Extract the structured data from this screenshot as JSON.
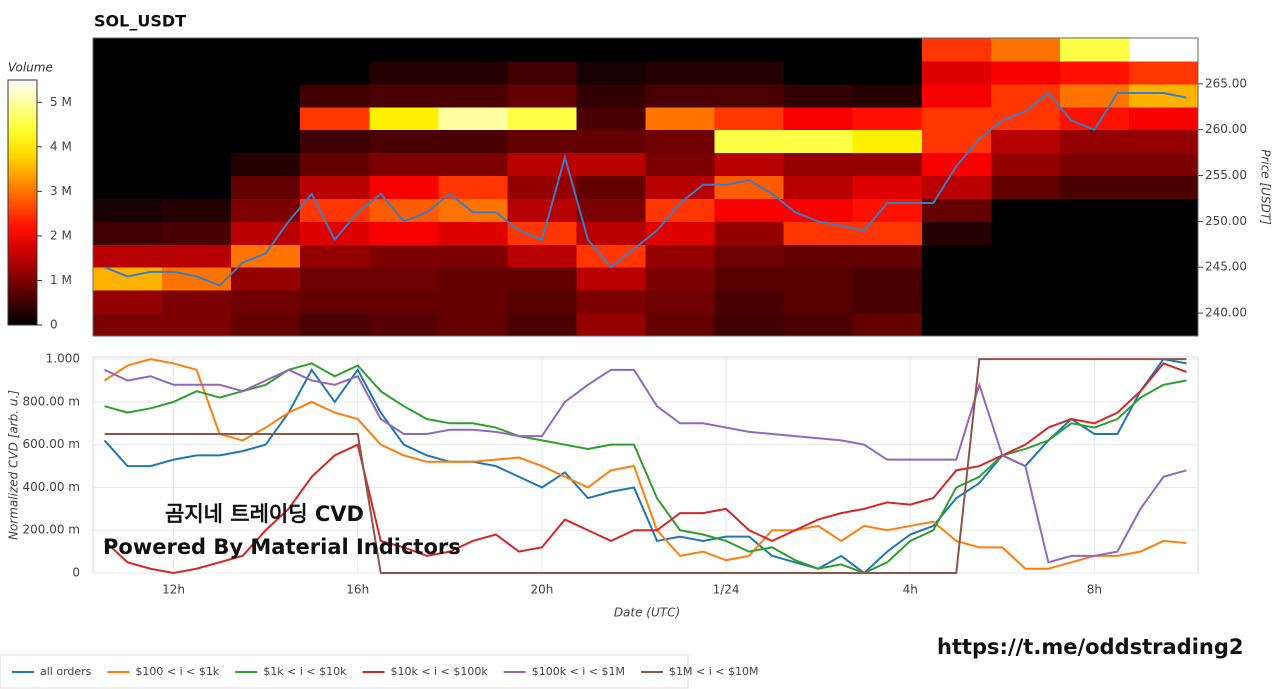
{
  "chart_data": [
    {
      "type": "heatmap",
      "title": "SOL_USDT",
      "y_label": "Price [USDT]",
      "xlim": [
        10.25,
        34.25
      ],
      "ylim": [
        237.5,
        270
      ],
      "yticks": [
        {
          "value": 240,
          "label": "240.00"
        },
        {
          "value": 245,
          "label": "245.00"
        },
        {
          "value": 250,
          "label": "250.00"
        },
        {
          "value": 255,
          "label": "255.00"
        },
        {
          "value": 260,
          "label": "260.00"
        },
        {
          "value": 265,
          "label": "265.00"
        }
      ],
      "x_bins": [
        10.25,
        11.75,
        13.25,
        14.75,
        16.25,
        17.75,
        19.25,
        20.75,
        22.25,
        23.75,
        25.25,
        26.75,
        28.25,
        29.75,
        31.25,
        32.75,
        34.25
      ],
      "y_bins": [
        237.5,
        240,
        242.5,
        245,
        247.5,
        250,
        252.5,
        255,
        257.5,
        260,
        262.5,
        265,
        267.5,
        270
      ],
      "z": [
        [
          1.0,
          1.0,
          0.8,
          0.6,
          0.7,
          0.8,
          0.6,
          1.2,
          0.8,
          0.5,
          0.6,
          0.8,
          0,
          0,
          0,
          0
        ],
        [
          1.2,
          1.0,
          0.9,
          0.8,
          0.8,
          0.8,
          0.7,
          1.0,
          0.9,
          0.6,
          0.7,
          0.6,
          0,
          0,
          0,
          0
        ],
        [
          3.5,
          3.0,
          1.2,
          0.9,
          0.9,
          0.8,
          0.8,
          1.5,
          1.0,
          0.7,
          0.7,
          0.6,
          0,
          0,
          0,
          0
        ],
        [
          1.5,
          1.5,
          3.0,
          1.2,
          1.0,
          1.0,
          1.5,
          2.5,
          1.2,
          0.9,
          0.8,
          0.8,
          0,
          0,
          0,
          0
        ],
        [
          0.5,
          0.6,
          1.5,
          1.8,
          2.0,
          1.8,
          2.5,
          1.5,
          1.8,
          1.2,
          2.5,
          2.5,
          0.3,
          0,
          0,
          0
        ],
        [
          0.2,
          0.3,
          1.0,
          2.5,
          2.8,
          3.0,
          1.5,
          1.0,
          2.5,
          2.0,
          2.0,
          2.2,
          0.8,
          0,
          0,
          0
        ],
        [
          0,
          0,
          0.8,
          1.5,
          2.0,
          2.5,
          1.2,
          0.8,
          1.5,
          2.8,
          1.5,
          1.8,
          1.5,
          0.8,
          0.6,
          0.6
        ],
        [
          0,
          0,
          0.3,
          0.8,
          1.0,
          1.0,
          1.5,
          1.5,
          1.0,
          1.5,
          1.2,
          1.2,
          2.0,
          1.2,
          1.0,
          1.0
        ],
        [
          0,
          0,
          0,
          0.5,
          0.6,
          0.6,
          0.8,
          0.8,
          0.9,
          4.5,
          4.5,
          4.0,
          2.5,
          1.5,
          1.2,
          1.2
        ],
        [
          0,
          0,
          0,
          2.5,
          4.0,
          5.0,
          4.5,
          0.6,
          3.0,
          2.5,
          2.0,
          2.2,
          2.5,
          2.5,
          2.2,
          2.0
        ],
        [
          0,
          0,
          0,
          0.5,
          0.6,
          0.6,
          0.8,
          0.4,
          0.6,
          0.6,
          0.4,
          0.3,
          2.0,
          2.5,
          3.0,
          3.5
        ],
        [
          0,
          0,
          0,
          0,
          0.3,
          0.3,
          0.5,
          0.2,
          0.3,
          0.3,
          0,
          0,
          1.8,
          2.0,
          2.2,
          2.5
        ],
        [
          0,
          0,
          0,
          0,
          0,
          0,
          0,
          0,
          0,
          0,
          0,
          0,
          2.5,
          3.0,
          4.5,
          5.5
        ]
      ],
      "colorbar": {
        "label": "Volume",
        "ylim": [
          0,
          5.5
        ],
        "yticks": [
          0,
          {
            "value": 1,
            "label": "1 M"
          },
          {
            "value": 2,
            "label": "2 M"
          },
          {
            "value": 3,
            "label": "3 M"
          },
          {
            "value": 4,
            "label": "4 M"
          },
          {
            "value": 5,
            "label": "5 M"
          }
        ]
      },
      "x": [
        10.5,
        11,
        11.5,
        12,
        12.5,
        13,
        13.5,
        14,
        14.5,
        15,
        15.5,
        16,
        16.5,
        17,
        17.5,
        18,
        18.5,
        19,
        19.5,
        20,
        20.5,
        21,
        21.5,
        22,
        22.5,
        23,
        23.5,
        24,
        24.5,
        25,
        25.5,
        26,
        26.5,
        27,
        27.5,
        28,
        28.5,
        29,
        29.5,
        30,
        30.5,
        31,
        31.5,
        32,
        32.5,
        33,
        33.5,
        34
      ],
      "line": {
        "color": "#3b7dc4",
        "values": [
          245,
          244,
          244.5,
          244.5,
          244,
          243,
          245.5,
          246.5,
          250,
          253,
          248,
          251,
          253,
          250,
          251,
          253,
          251,
          251,
          249,
          248,
          257,
          248,
          245,
          247,
          249,
          252,
          254,
          254,
          254.5,
          253,
          251,
          250,
          249.5,
          249,
          252,
          252,
          252,
          256,
          259,
          261,
          262,
          264,
          261,
          260,
          264,
          264,
          264,
          263.5
        ]
      }
    },
    {
      "type": "line",
      "x_label": "Date (UTC)",
      "y_label": "Normalized CVD [arb. u.]",
      "grid": true,
      "xlim": [
        10.25,
        34.25
      ],
      "ylim": [
        0,
        1.01
      ],
      "xticks": [
        {
          "value": 12,
          "label": "12h"
        },
        {
          "value": 16,
          "label": "16h"
        },
        {
          "value": 20,
          "label": "20h"
        },
        {
          "value": 24,
          "label": "1/24"
        },
        {
          "value": 28,
          "label": "4h"
        },
        {
          "value": 32,
          "label": "8h"
        }
      ],
      "yticks": [
        0,
        {
          "value": 0.2,
          "label": "200.00 m"
        },
        {
          "value": 0.4,
          "label": "400.00 m"
        },
        {
          "value": 0.6,
          "label": "600.00 m"
        },
        {
          "value": 0.8,
          "label": "800.00 m"
        },
        {
          "value": 1,
          "label": "1.000"
        }
      ],
      "x": [
        10.5,
        11,
        11.5,
        12,
        12.5,
        13,
        13.5,
        14,
        14.5,
        15,
        15.5,
        16,
        16.5,
        17,
        17.5,
        18,
        18.5,
        19,
        19.5,
        20,
        20.5,
        21,
        21.5,
        22,
        22.5,
        23,
        23.5,
        24,
        24.5,
        25,
        25.5,
        26,
        26.5,
        27,
        27.5,
        28,
        28.5,
        29,
        29.5,
        30,
        30.5,
        31,
        31.5,
        32,
        32.5,
        33,
        33.5,
        34
      ],
      "series": [
        {
          "name": "all orders",
          "color": "#1f77b4",
          "values": [
            0.62,
            0.5,
            0.5,
            0.53,
            0.55,
            0.55,
            0.57,
            0.6,
            0.75,
            0.95,
            0.8,
            0.95,
            0.75,
            0.6,
            0.55,
            0.52,
            0.52,
            0.5,
            0.45,
            0.4,
            0.47,
            0.35,
            0.38,
            0.4,
            0.15,
            0.17,
            0.15,
            0.17,
            0.17,
            0.08,
            0.05,
            0.02,
            0.08,
            0.0,
            0.1,
            0.18,
            0.22,
            0.35,
            0.42,
            0.55,
            0.5,
            0.62,
            0.72,
            0.65,
            0.65,
            0.85,
            1.0,
            0.98
          ]
        },
        {
          "name": "$100 < i < $1k",
          "color": "#ff7f0e",
          "values": [
            0.9,
            0.97,
            1.0,
            0.98,
            0.95,
            0.65,
            0.62,
            0.68,
            0.75,
            0.8,
            0.75,
            0.72,
            0.6,
            0.55,
            0.52,
            0.52,
            0.52,
            0.53,
            0.54,
            0.5,
            0.45,
            0.4,
            0.48,
            0.5,
            0.2,
            0.08,
            0.1,
            0.06,
            0.08,
            0.2,
            0.2,
            0.22,
            0.15,
            0.22,
            0.2,
            0.22,
            0.24,
            0.15,
            0.12,
            0.12,
            0.02,
            0.02,
            0.05,
            0.08,
            0.08,
            0.1,
            0.15,
            0.14
          ]
        },
        {
          "name": "$1k < i < $10k",
          "color": "#2ca02c",
          "values": [
            0.78,
            0.75,
            0.77,
            0.8,
            0.85,
            0.82,
            0.85,
            0.88,
            0.95,
            0.98,
            0.92,
            0.97,
            0.85,
            0.78,
            0.72,
            0.7,
            0.7,
            0.68,
            0.64,
            0.62,
            0.6,
            0.58,
            0.6,
            0.6,
            0.35,
            0.2,
            0.18,
            0.15,
            0.1,
            0.12,
            0.06,
            0.02,
            0.04,
            0.0,
            0.05,
            0.15,
            0.2,
            0.4,
            0.45,
            0.55,
            0.58,
            0.62,
            0.7,
            0.68,
            0.72,
            0.82,
            0.88,
            0.9
          ]
        },
        {
          "name": "$10k < i < $100k",
          "color": "#d62728",
          "values": [
            0.15,
            0.05,
            0.02,
            0.0,
            0.02,
            0.05,
            0.08,
            0.2,
            0.3,
            0.45,
            0.55,
            0.6,
            0.15,
            0.12,
            0.08,
            0.1,
            0.15,
            0.18,
            0.1,
            0.12,
            0.25,
            0.2,
            0.15,
            0.2,
            0.2,
            0.28,
            0.28,
            0.3,
            0.2,
            0.15,
            0.2,
            0.25,
            0.28,
            0.3,
            0.33,
            0.32,
            0.35,
            0.48,
            0.5,
            0.55,
            0.6,
            0.68,
            0.72,
            0.7,
            0.75,
            0.85,
            0.98,
            0.94
          ]
        },
        {
          "name": "$100k < i < $1M",
          "color": "#9467bd",
          "values": [
            0.95,
            0.9,
            0.92,
            0.88,
            0.88,
            0.88,
            0.85,
            0.9,
            0.95,
            0.9,
            0.88,
            0.92,
            0.72,
            0.65,
            0.65,
            0.67,
            0.67,
            0.66,
            0.64,
            0.64,
            0.8,
            0.88,
            0.95,
            0.95,
            0.78,
            0.7,
            0.7,
            0.68,
            0.66,
            0.65,
            0.64,
            0.63,
            0.62,
            0.6,
            0.53,
            0.53,
            0.53,
            0.53,
            0.88,
            0.55,
            0.5,
            0.05,
            0.08,
            0.08,
            0.1,
            0.3,
            0.45,
            0.48
          ]
        },
        {
          "name": "$1M < i < $10M",
          "color": "#8c564b",
          "values": [
            0.65,
            0.65,
            0.65,
            0.65,
            0.65,
            0.65,
            0.65,
            0.65,
            0.65,
            0.65,
            0.65,
            0.65,
            0,
            0,
            0,
            0,
            0,
            0,
            0,
            0,
            0,
            0,
            0,
            0,
            0,
            0,
            0,
            0,
            0,
            0,
            0,
            0,
            0,
            0,
            0,
            0,
            0,
            0,
            1,
            1,
            1,
            1,
            1,
            1,
            1,
            1,
            1,
            1
          ]
        }
      ]
    }
  ],
  "annotations": {
    "watermark": "곰지네 트레이딩 CVD",
    "credit": "Powered By Material Indictors",
    "link": "https://t.me/oddstrading2"
  }
}
